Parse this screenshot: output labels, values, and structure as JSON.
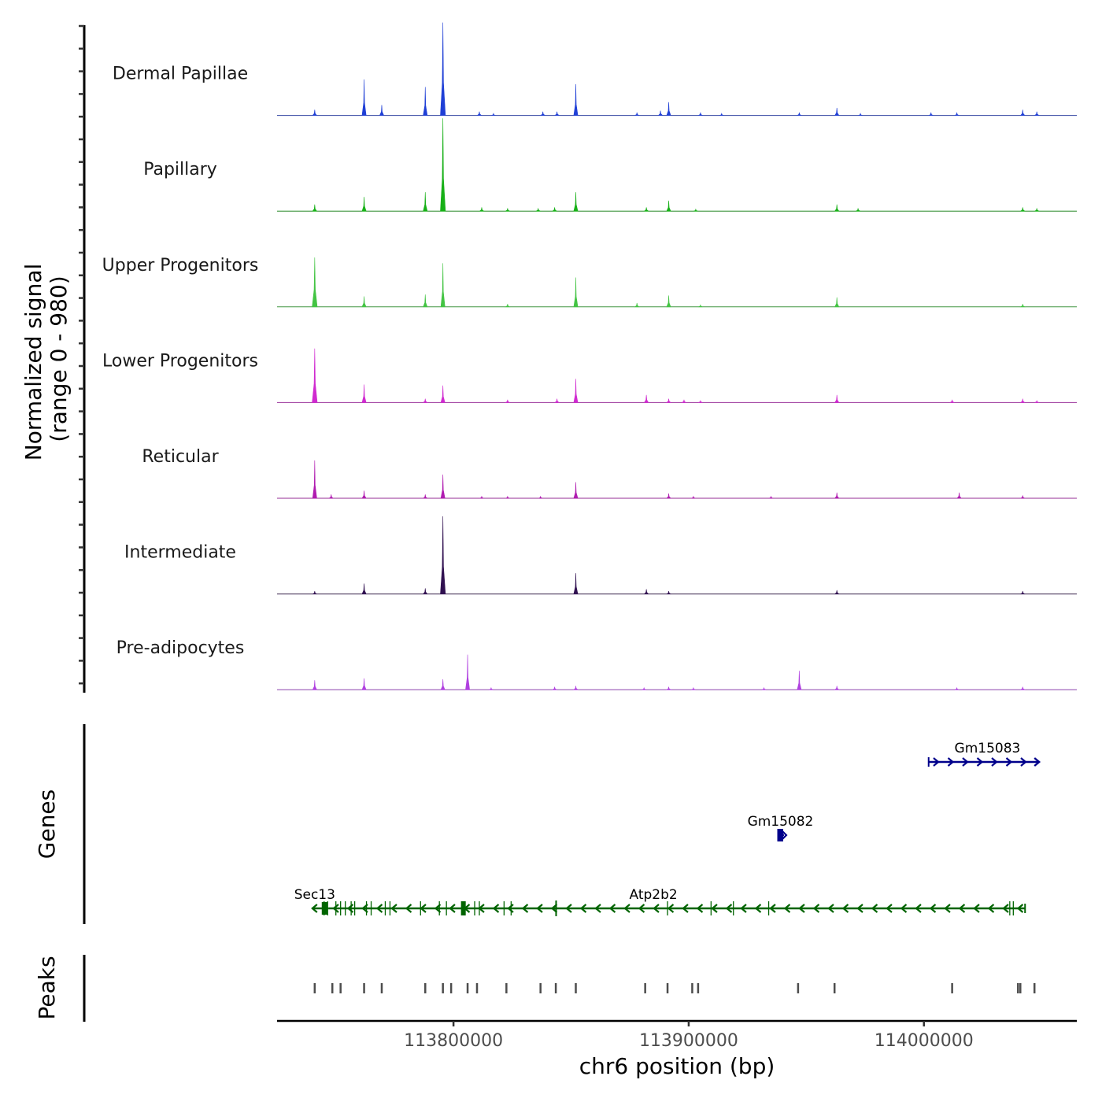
{
  "chart_data": {
    "type": "coverage-track",
    "y_axis_title_line1": "Normalized signal",
    "y_axis_title_line2": "(range 0 - 980)",
    "signal_range": [
      0,
      980
    ],
    "x_axis_title": "chr6 position (bp)",
    "x_range": [
      113725000,
      114065000
    ],
    "x_ticks": [
      113800000,
      113900000,
      114000000
    ],
    "x_tick_labels": [
      "113800000",
      "113900000",
      "114000000"
    ],
    "tracks": [
      {
        "name": "Dermal Papillae",
        "color": "#1f3fd6",
        "peaks": [
          [
            113741000,
            60
          ],
          [
            113762000,
            380
          ],
          [
            113769500,
            110
          ],
          [
            113788000,
            300
          ],
          [
            113795500,
            980
          ],
          [
            113811000,
            40
          ],
          [
            113817000,
            20
          ],
          [
            113838000,
            40
          ],
          [
            113844000,
            40
          ],
          [
            113852000,
            330
          ],
          [
            113878000,
            30
          ],
          [
            113888000,
            50
          ],
          [
            113891500,
            140
          ],
          [
            113905000,
            30
          ],
          [
            113914000,
            20
          ],
          [
            113947000,
            30
          ],
          [
            113963000,
            80
          ],
          [
            113973000,
            20
          ],
          [
            114003000,
            30
          ],
          [
            114014000,
            30
          ],
          [
            114042000,
            60
          ],
          [
            114048000,
            40
          ]
        ]
      },
      {
        "name": "Papillary",
        "color": "#17b017",
        "peaks": [
          [
            113741000,
            70
          ],
          [
            113762000,
            150
          ],
          [
            113788000,
            200
          ],
          [
            113795500,
            980
          ],
          [
            113812000,
            40
          ],
          [
            113823000,
            30
          ],
          [
            113836000,
            30
          ],
          [
            113843000,
            40
          ],
          [
            113852000,
            200
          ],
          [
            113882000,
            40
          ],
          [
            113891500,
            110
          ],
          [
            113903000,
            20
          ],
          [
            113963000,
            70
          ],
          [
            113972000,
            30
          ],
          [
            114042000,
            40
          ],
          [
            114048000,
            30
          ]
        ]
      },
      {
        "name": "Upper Progenitors",
        "color": "#43c443",
        "peaks": [
          [
            113741000,
            520
          ],
          [
            113762000,
            110
          ],
          [
            113788000,
            130
          ],
          [
            113795500,
            460
          ],
          [
            113823000,
            30
          ],
          [
            113852000,
            310
          ],
          [
            113878000,
            40
          ],
          [
            113891500,
            120
          ],
          [
            113905000,
            20
          ],
          [
            113963000,
            100
          ],
          [
            114042000,
            30
          ]
        ]
      },
      {
        "name": "Lower Progenitors",
        "color": "#d02ad0",
        "peaks": [
          [
            113741000,
            570
          ],
          [
            113762000,
            190
          ],
          [
            113788000,
            40
          ],
          [
            113795500,
            180
          ],
          [
            113823000,
            30
          ],
          [
            113844000,
            40
          ],
          [
            113852000,
            250
          ],
          [
            113882000,
            80
          ],
          [
            113891500,
            40
          ],
          [
            113898000,
            30
          ],
          [
            113905000,
            20
          ],
          [
            113963000,
            80
          ],
          [
            114012000,
            30
          ],
          [
            114042000,
            40
          ],
          [
            114048000,
            20
          ]
        ]
      },
      {
        "name": "Reticular",
        "color": "#b01cb0",
        "peaks": [
          [
            113741000,
            400
          ],
          [
            113748000,
            40
          ],
          [
            113762000,
            80
          ],
          [
            113788000,
            40
          ],
          [
            113795500,
            250
          ],
          [
            113812000,
            20
          ],
          [
            113823000,
            20
          ],
          [
            113837000,
            20
          ],
          [
            113852000,
            170
          ],
          [
            113891500,
            50
          ],
          [
            113902000,
            20
          ],
          [
            113935000,
            20
          ],
          [
            113963000,
            60
          ],
          [
            114015000,
            60
          ],
          [
            114042000,
            30
          ]
        ]
      },
      {
        "name": "Intermediate",
        "color": "#301050",
        "peaks": [
          [
            113741000,
            30
          ],
          [
            113762000,
            110
          ],
          [
            113788000,
            60
          ],
          [
            113795500,
            820
          ],
          [
            113852000,
            220
          ],
          [
            113882000,
            50
          ],
          [
            113891500,
            30
          ],
          [
            113963000,
            40
          ],
          [
            114042000,
            30
          ]
        ]
      },
      {
        "name": "Pre-adipocytes",
        "color": "#b040e0",
        "peaks": [
          [
            113741000,
            100
          ],
          [
            113762000,
            120
          ],
          [
            113795500,
            110
          ],
          [
            113806000,
            370
          ],
          [
            113816000,
            20
          ],
          [
            113843000,
            30
          ],
          [
            113852000,
            40
          ],
          [
            113881000,
            20
          ],
          [
            113891500,
            30
          ],
          [
            113902000,
            20
          ],
          [
            113932000,
            20
          ],
          [
            113947000,
            200
          ],
          [
            113963000,
            40
          ],
          [
            114014000,
            20
          ],
          [
            114042000,
            30
          ]
        ]
      }
    ],
    "genes_panel": {
      "title": "Genes",
      "genes": [
        {
          "name": "Gm15083",
          "start": 114002000,
          "end": 114049000,
          "strand": "+",
          "color": "#00008b",
          "row": 1
        },
        {
          "name": "Gm15082",
          "start": 113938000,
          "end": 113940500,
          "strand": "+",
          "color": "#00008b",
          "row": 2
        },
        {
          "name": "Sec13",
          "start": 113740000,
          "end": 113747000,
          "strand": "-",
          "color": "#006400",
          "row": 3
        },
        {
          "name": "Atp2b2",
          "start": 113747000,
          "end": 114043000,
          "strand": "-",
          "color": "#006400",
          "row": 3
        }
      ],
      "exons_row3": [
        113745000,
        113746500,
        113750000,
        113752000,
        113754000,
        113756500,
        113758000,
        113763000,
        113765000,
        113771000,
        113773000,
        113786000,
        113794000,
        113797000,
        113803500,
        113804500,
        113809000,
        113811000,
        113821500,
        113824500,
        113843500,
        113891000,
        113909500,
        113919000,
        113934000,
        114036500,
        114038000
      ]
    },
    "peaks_panel": {
      "title": "Peaks",
      "positions": [
        113741000,
        113748500,
        113752000,
        113762000,
        113769500,
        113788000,
        113795500,
        113799000,
        113806000,
        113810000,
        113822500,
        113837000,
        113843500,
        113852000,
        113881500,
        113891000,
        113901500,
        113904000,
        113946500,
        113962000,
        114012000,
        114040000,
        114041000,
        114047000
      ]
    }
  }
}
